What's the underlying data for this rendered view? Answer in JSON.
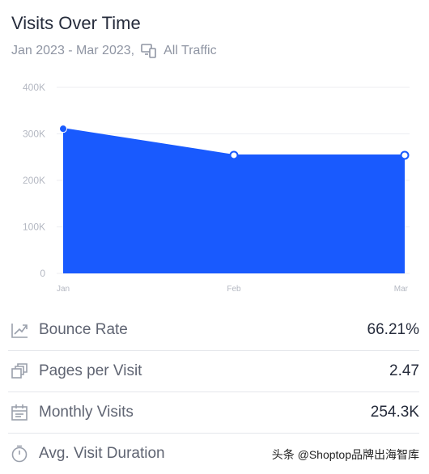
{
  "header": {
    "title": "Visits Over Time",
    "date_range": "Jan 2023 - Mar 2023,",
    "traffic_icon": "devices-icon",
    "traffic_label": "All Traffic"
  },
  "chart_data": {
    "type": "area",
    "categories": [
      "Jan",
      "Feb",
      "Mar"
    ],
    "values": [
      311000,
      254000,
      254000
    ],
    "ylim": [
      0,
      400000
    ],
    "yticks": [
      0,
      100000,
      200000,
      300000,
      400000
    ],
    "ytick_labels": [
      "0",
      "100K",
      "200K",
      "300K",
      "400K"
    ],
    "grid": true,
    "fill_color": "#195afe"
  },
  "metrics": [
    {
      "icon": "bounce-rate-icon",
      "label": "Bounce Rate",
      "value": "66.21%"
    },
    {
      "icon": "pages-icon",
      "label": "Pages per Visit",
      "value": "2.47"
    },
    {
      "icon": "calendar-icon",
      "label": "Monthly Visits",
      "value": "254.3K"
    },
    {
      "icon": "clock-icon",
      "label": "Avg. Visit Duration",
      "value": ""
    }
  ],
  "watermark": "头条 @Shoptop品牌出海智库"
}
